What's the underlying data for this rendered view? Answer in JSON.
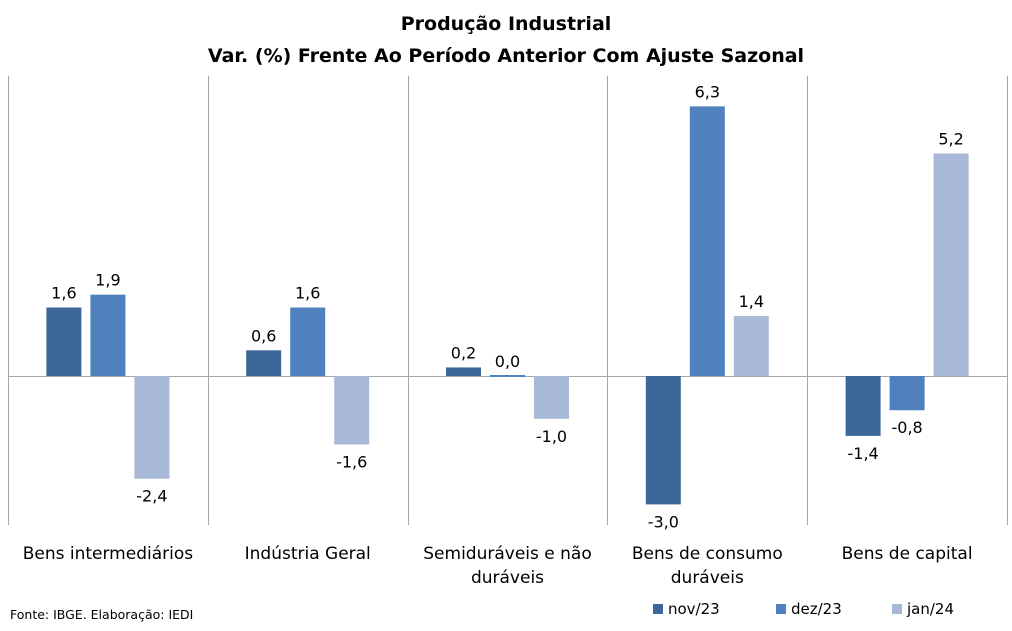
{
  "source_note": "Fonte: IBGE. Elaboração: IEDI",
  "chart_data": {
    "type": "bar",
    "title": "Produção Industrial",
    "subtitle": "Var. (%) Frente Ao Período Anterior Com Ajuste Sazonal",
    "categories": [
      [
        "Bens intermediários"
      ],
      [
        "Indústria Geral"
      ],
      [
        "Semiduráveis e não",
        "duráveis"
      ],
      [
        "Bens de consumo",
        "duráveis"
      ],
      [
        "Bens de capital"
      ]
    ],
    "series": [
      {
        "name": "nov/23",
        "color": "#3d6699",
        "values": [
          1.6,
          0.6,
          0.2,
          -3.0,
          -1.4
        ],
        "labels": [
          "1,6",
          "0,6",
          "0,2",
          "-3,0",
          "-1,4"
        ]
      },
      {
        "name": "dez/23",
        "color": "#4e81bd",
        "values": [
          1.9,
          1.6,
          0.0,
          6.3,
          -0.8
        ],
        "labels": [
          "1,9",
          "1,6",
          "0,0",
          "6,3",
          "-0,8"
        ]
      },
      {
        "name": "jan/24",
        "color": "#a8b9d7",
        "values": [
          -2.4,
          -1.6,
          -1.0,
          1.4,
          5.2
        ],
        "labels": [
          "-2,4",
          "-1,6",
          "-1,0",
          "1,4",
          "5,2"
        ]
      }
    ],
    "ylim": [
      -3.5,
      7.0
    ],
    "grid": "vertical category separators",
    "legend_position": "bottom-right",
    "data_labels": true
  }
}
